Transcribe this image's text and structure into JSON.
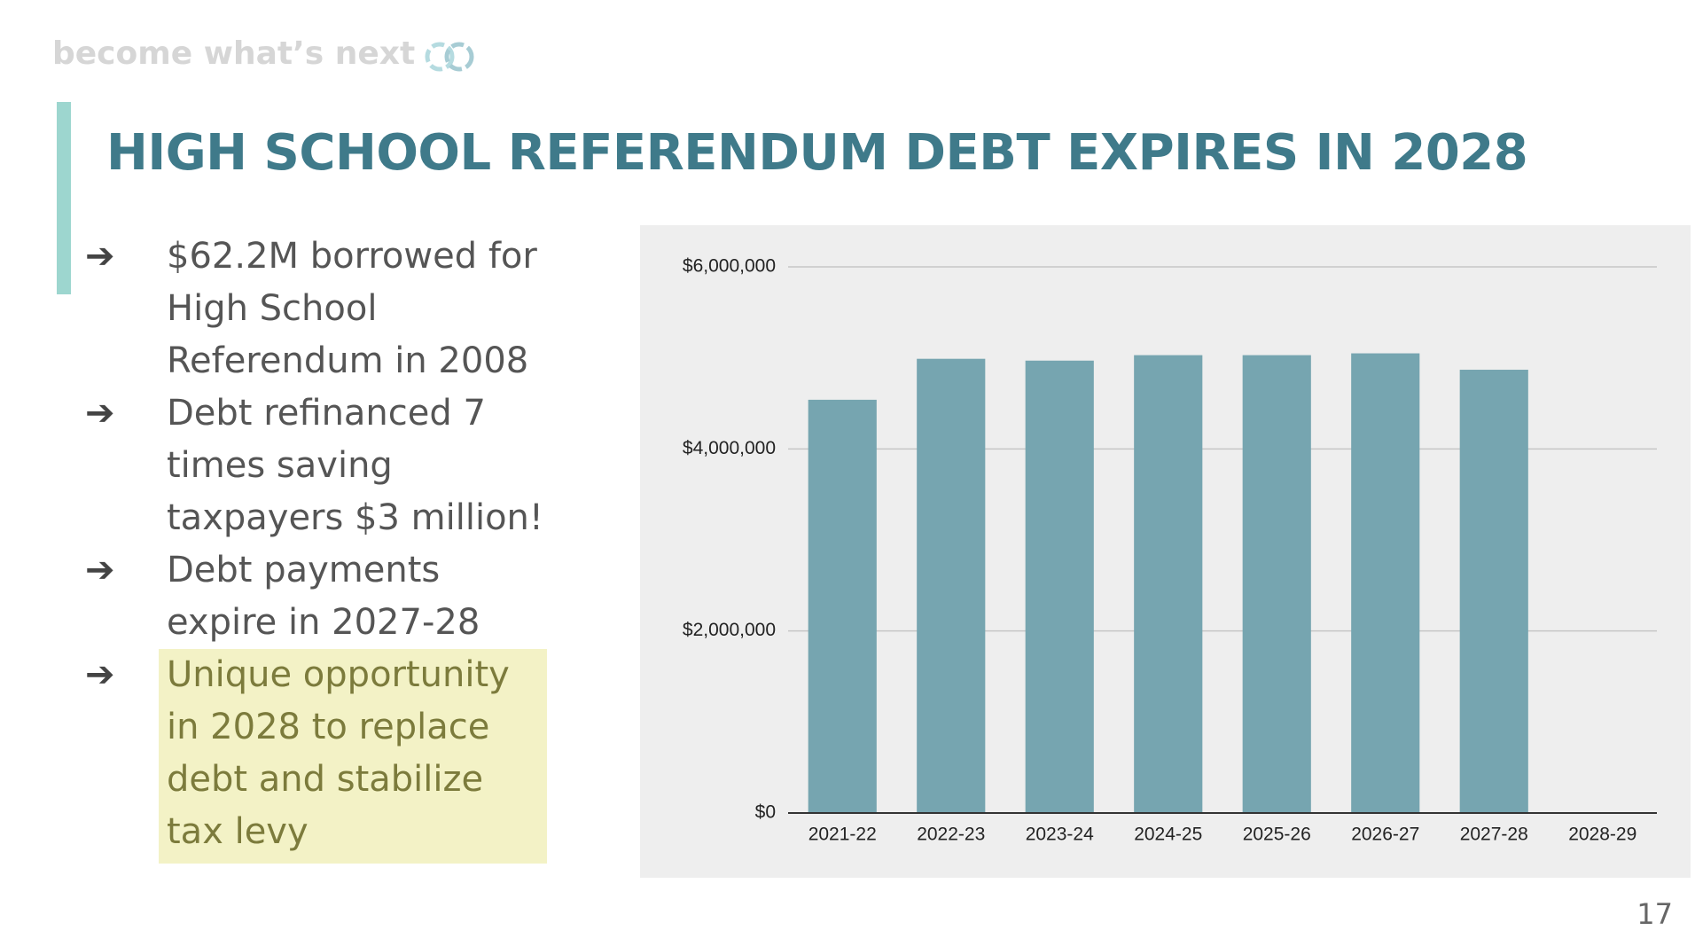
{
  "brand": "become what’s next",
  "title": "HIGH SCHOOL REFERENDUM DEBT EXPIRES IN 2028",
  "bullets": [
    {
      "lines": [
        "$62.2M borrowed for",
        "High School",
        "Referendum in 2008"
      ]
    },
    {
      "lines": [
        "Debt refinanced 7",
        "times saving",
        "taxpayers $3 million!"
      ]
    },
    {
      "lines": [
        "Debt payments",
        "expire in 2027-28"
      ]
    },
    {
      "lines": [
        "Unique opportunity",
        "in 2028 to replace",
        "debt and stabilize",
        "tax levy"
      ],
      "highlight": true
    }
  ],
  "bullet_marker": "➔",
  "page_number": 17,
  "chart_data": {
    "type": "bar",
    "categories": [
      "2021-22",
      "2022-23",
      "2023-24",
      "2024-25",
      "2025-26",
      "2026-27",
      "2027-28",
      "2028-29"
    ],
    "values": [
      4540000,
      4990000,
      4970000,
      5030000,
      5030000,
      5050000,
      4870000,
      null
    ],
    "color": "#76a5b0",
    "ylim": [
      0,
      6000000
    ],
    "yticks": [
      {
        "value": 0,
        "label": "$0"
      },
      {
        "value": 2000000,
        "label": "$2,000,000"
      },
      {
        "value": 4000000,
        "label": "$4,000,000"
      },
      {
        "value": 6000000,
        "label": "$6,000,000"
      }
    ],
    "grid": true,
    "background": "#eeeeee"
  }
}
